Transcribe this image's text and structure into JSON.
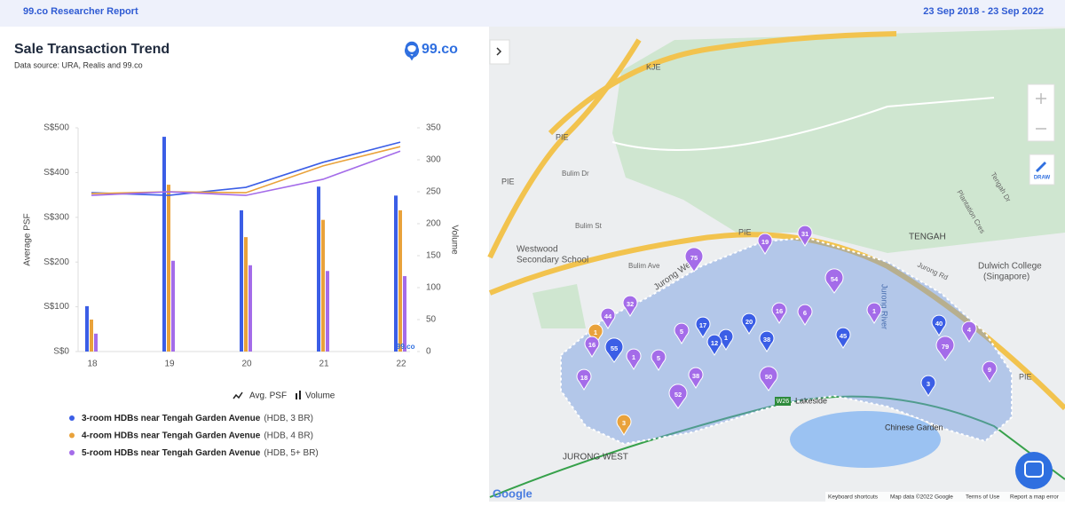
{
  "header": {
    "title": "99.co Researcher Report",
    "date_range": "23 Sep 2018 - 23 Sep 2022"
  },
  "logo": "99.co",
  "chart_data": {
    "type": "bar_line",
    "title": "Sale Transaction Trend",
    "subtitle": "Data source: URA, Realis and 99.co",
    "ylabel": "Average PSF",
    "y2label": "Volume",
    "line_label": "Avg. PSF",
    "bar_label": "Volume",
    "watermark": "99.co",
    "categories": [
      "18",
      "19",
      "20",
      "21",
      "22"
    ],
    "ylim": [
      0,
      500
    ],
    "yticks": [
      {
        "value": 0,
        "label": "S$0"
      },
      {
        "value": 100,
        "label": "S$100"
      },
      {
        "value": 200,
        "label": "S$200"
      },
      {
        "value": 300,
        "label": "S$300"
      },
      {
        "value": 400,
        "label": "S$400"
      },
      {
        "value": 500,
        "label": "S$500"
      }
    ],
    "y2lim": [
      0,
      350
    ],
    "y2ticks": [
      0,
      50,
      100,
      150,
      200,
      250,
      300,
      350
    ],
    "series": [
      {
        "name": "3-room HDBs near Tengah Garden Avenue",
        "detail": "(HDB, 3 BR)",
        "color": "#3b5ee6",
        "psf": [
          355,
          349,
          367,
          423,
          468
        ],
        "volume": [
          71,
          336,
          221,
          258,
          244
        ]
      },
      {
        "name": "4-room HDBs near Tengah Garden Avenue",
        "detail": "(HDB, 4 BR)",
        "color": "#e9a23b",
        "psf": [
          353,
          357,
          355,
          415,
          458
        ],
        "volume": [
          50,
          261,
          179,
          206,
          221
        ]
      },
      {
        "name": "5-room HDBs near Tengah Garden Avenue",
        "detail": "(HDB, 5+ BR)",
        "color": "#a46ce9",
        "psf": [
          349,
          357,
          349,
          385,
          448
        ],
        "volume": [
          28,
          142,
          135,
          126,
          118
        ]
      }
    ]
  },
  "map": {
    "labels": [
      "KJE",
      "PIE",
      "PIE",
      "PIE",
      "PIE",
      "Bulim Dr",
      "Bulim St",
      "Bulim Ave",
      "Westwood",
      "Secondary School",
      "Jurong West",
      "TENGAH",
      "Dulwich College",
      "(Singapore)",
      "Jurong River",
      "Lakeside",
      "Chinese Garden",
      "JURONG WEST",
      "Jurong Rd",
      "Plantation Cres",
      "Tengah Dr"
    ],
    "markers": [
      {
        "count": 75,
        "color": "#a46ce9"
      },
      {
        "count": 19,
        "color": "#a46ce9"
      },
      {
        "count": 31,
        "color": "#a46ce9"
      },
      {
        "count": 54,
        "color": "#a46ce9"
      },
      {
        "count": 32,
        "color": "#a46ce9"
      },
      {
        "count": 44,
        "color": "#a46ce9"
      },
      {
        "count": 1,
        "color": "#e9a23b"
      },
      {
        "count": 16,
        "color": "#a46ce9"
      },
      {
        "count": 55,
        "color": "#3b5ee6"
      },
      {
        "count": 1,
        "color": "#a46ce9"
      },
      {
        "count": 5,
        "color": "#a46ce9"
      },
      {
        "count": 5,
        "color": "#a46ce9"
      },
      {
        "count": 17,
        "color": "#3b5ee6"
      },
      {
        "count": 1,
        "color": "#3b5ee6"
      },
      {
        "count": 12,
        "color": "#3b5ee6"
      },
      {
        "count": 20,
        "color": "#3b5ee6"
      },
      {
        "count": 16,
        "color": "#a46ce9"
      },
      {
        "count": 6,
        "color": "#a46ce9"
      },
      {
        "count": 1,
        "color": "#a46ce9"
      },
      {
        "count": 38,
        "color": "#3b5ee6"
      },
      {
        "count": 45,
        "color": "#3b5ee6"
      },
      {
        "count": 40,
        "color": "#3b5ee6"
      },
      {
        "count": 4,
        "color": "#a46ce9"
      },
      {
        "count": 79,
        "color": "#a46ce9"
      },
      {
        "count": 9,
        "color": "#a46ce9"
      },
      {
        "count": 3,
        "color": "#3b5ee6"
      },
      {
        "count": 18,
        "color": "#a46ce9"
      },
      {
        "count": 38,
        "color": "#a46ce9"
      },
      {
        "count": 50,
        "color": "#a46ce9"
      },
      {
        "count": 52,
        "color": "#a46ce9"
      },
      {
        "count": 3,
        "color": "#e9a23b"
      }
    ],
    "draw_button": "DRAW",
    "station": "W26",
    "google": "Google",
    "footer": [
      "Keyboard shortcuts",
      "Map data ©2022 Google",
      "Terms of Use",
      "Report a map error"
    ]
  }
}
